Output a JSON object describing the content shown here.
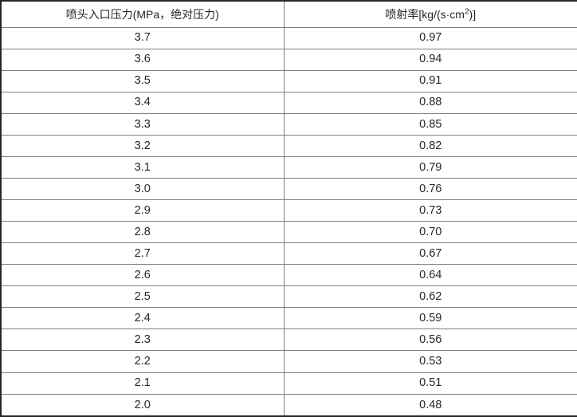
{
  "table": {
    "header": {
      "pressure_label": "喷头入口压力(MPa，绝对压力)",
      "rate_label_prefix": "喷射率[kg/(s·cm",
      "rate_label_sup": "2",
      "rate_label_suffix": ")]"
    },
    "rows": [
      {
        "pressure": "3.7",
        "rate": "0.97"
      },
      {
        "pressure": "3.6",
        "rate": "0.94"
      },
      {
        "pressure": "3.5",
        "rate": "0.91"
      },
      {
        "pressure": "3.4",
        "rate": "0.88"
      },
      {
        "pressure": "3.3",
        "rate": "0.85"
      },
      {
        "pressure": "3.2",
        "rate": "0.82"
      },
      {
        "pressure": "3.1",
        "rate": "0.79"
      },
      {
        "pressure": "3.0",
        "rate": "0.76"
      },
      {
        "pressure": "2.9",
        "rate": "0.73"
      },
      {
        "pressure": "2.8",
        "rate": "0.70"
      },
      {
        "pressure": "2.7",
        "rate": "0.67"
      },
      {
        "pressure": "2.6",
        "rate": "0.64"
      },
      {
        "pressure": "2.5",
        "rate": "0.62"
      },
      {
        "pressure": "2.4",
        "rate": "0.59"
      },
      {
        "pressure": "2.3",
        "rate": "0.56"
      },
      {
        "pressure": "2.2",
        "rate": "0.53"
      },
      {
        "pressure": "2.1",
        "rate": "0.51"
      },
      {
        "pressure": "2.0",
        "rate": "0.48"
      }
    ]
  },
  "colors": {
    "outer_border": "#262626",
    "inner_grid": "#808080",
    "text": "#262626",
    "background": "#ffffff"
  }
}
